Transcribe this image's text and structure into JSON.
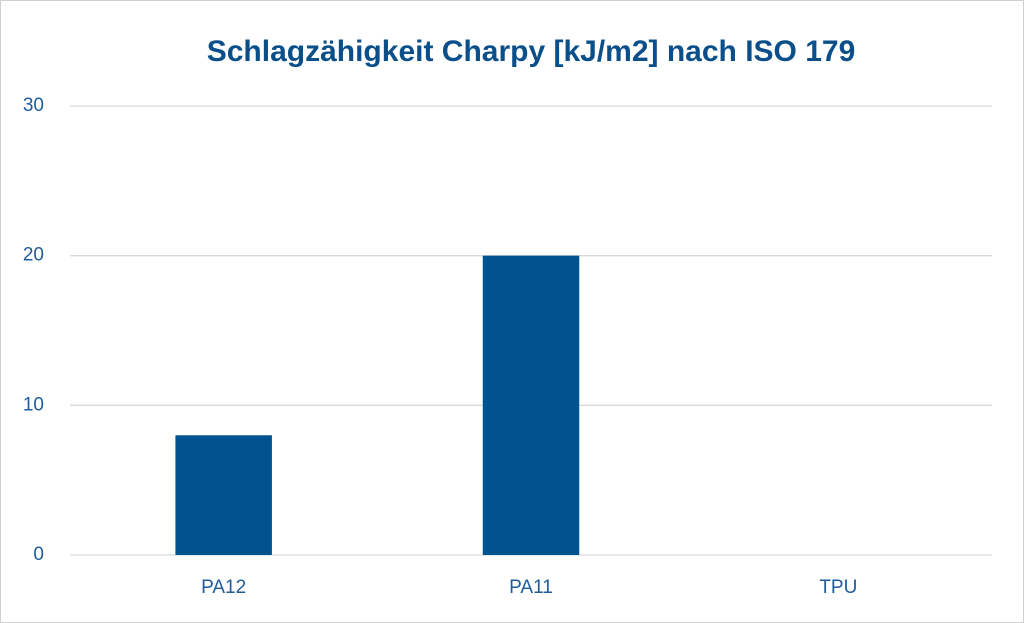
{
  "chart_data": {
    "type": "bar",
    "title": "Schlagzähigkeit Charpy [kJ/m2] nach ISO 179",
    "categories": [
      "PA12",
      "PA11",
      "TPU"
    ],
    "values": [
      8,
      20,
      0
    ],
    "color": "#00538f",
    "ylim": [
      0,
      30
    ],
    "yticks": [
      0,
      10,
      20,
      30
    ],
    "grid": true
  }
}
